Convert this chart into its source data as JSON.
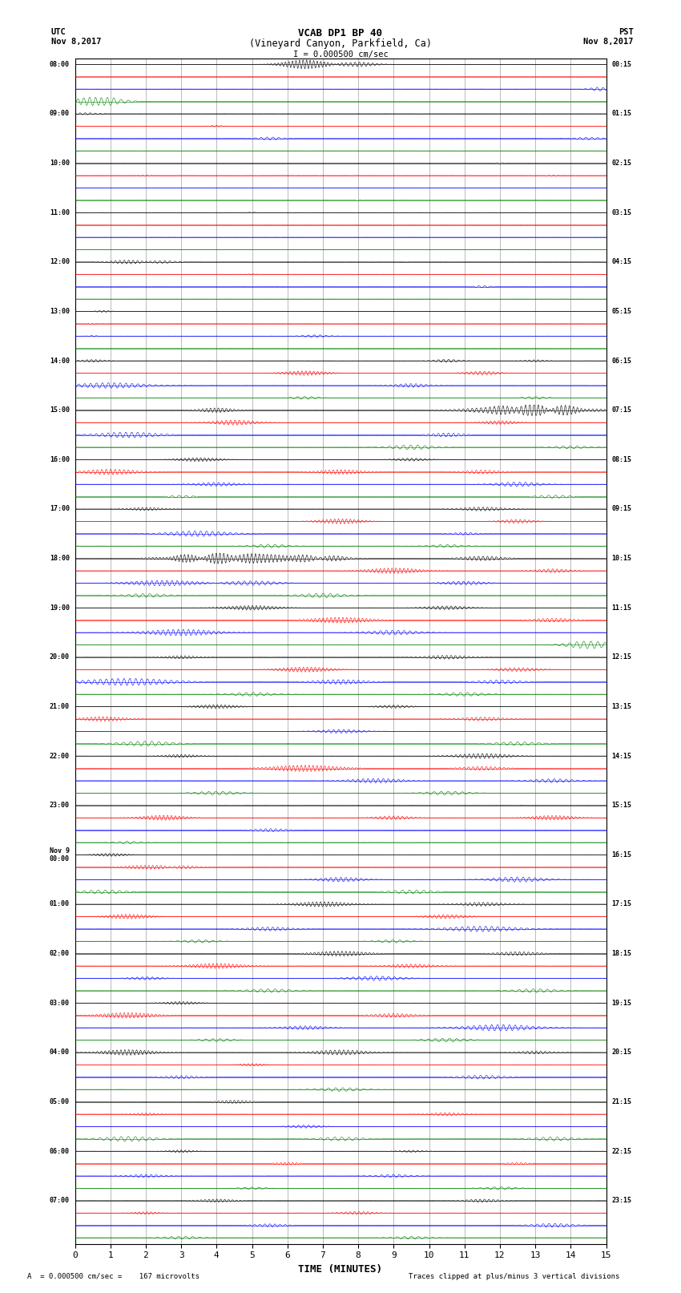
{
  "title_line1": "VCAB DP1 BP 40",
  "title_line2": "(Vineyard Canyon, Parkfield, Ca)",
  "scale_text": "I = 0.000500 cm/sec",
  "left_header_line1": "UTC",
  "left_header_line2": "Nov 8,2017",
  "right_header_line1": "PST",
  "right_header_line2": "Nov 8,2017",
  "xlabel": "TIME (MINUTES)",
  "footer_left": "= 0.000500 cm/sec =    167 microvolts",
  "footer_right": "Traces clipped at plus/minus 3 vertical divisions",
  "xmin": 0,
  "xmax": 15,
  "colors": [
    "black",
    "red",
    "blue",
    "green"
  ],
  "n_hours": 24,
  "background_color": "white",
  "grid_color": "#888888",
  "noise_seed": 42
}
